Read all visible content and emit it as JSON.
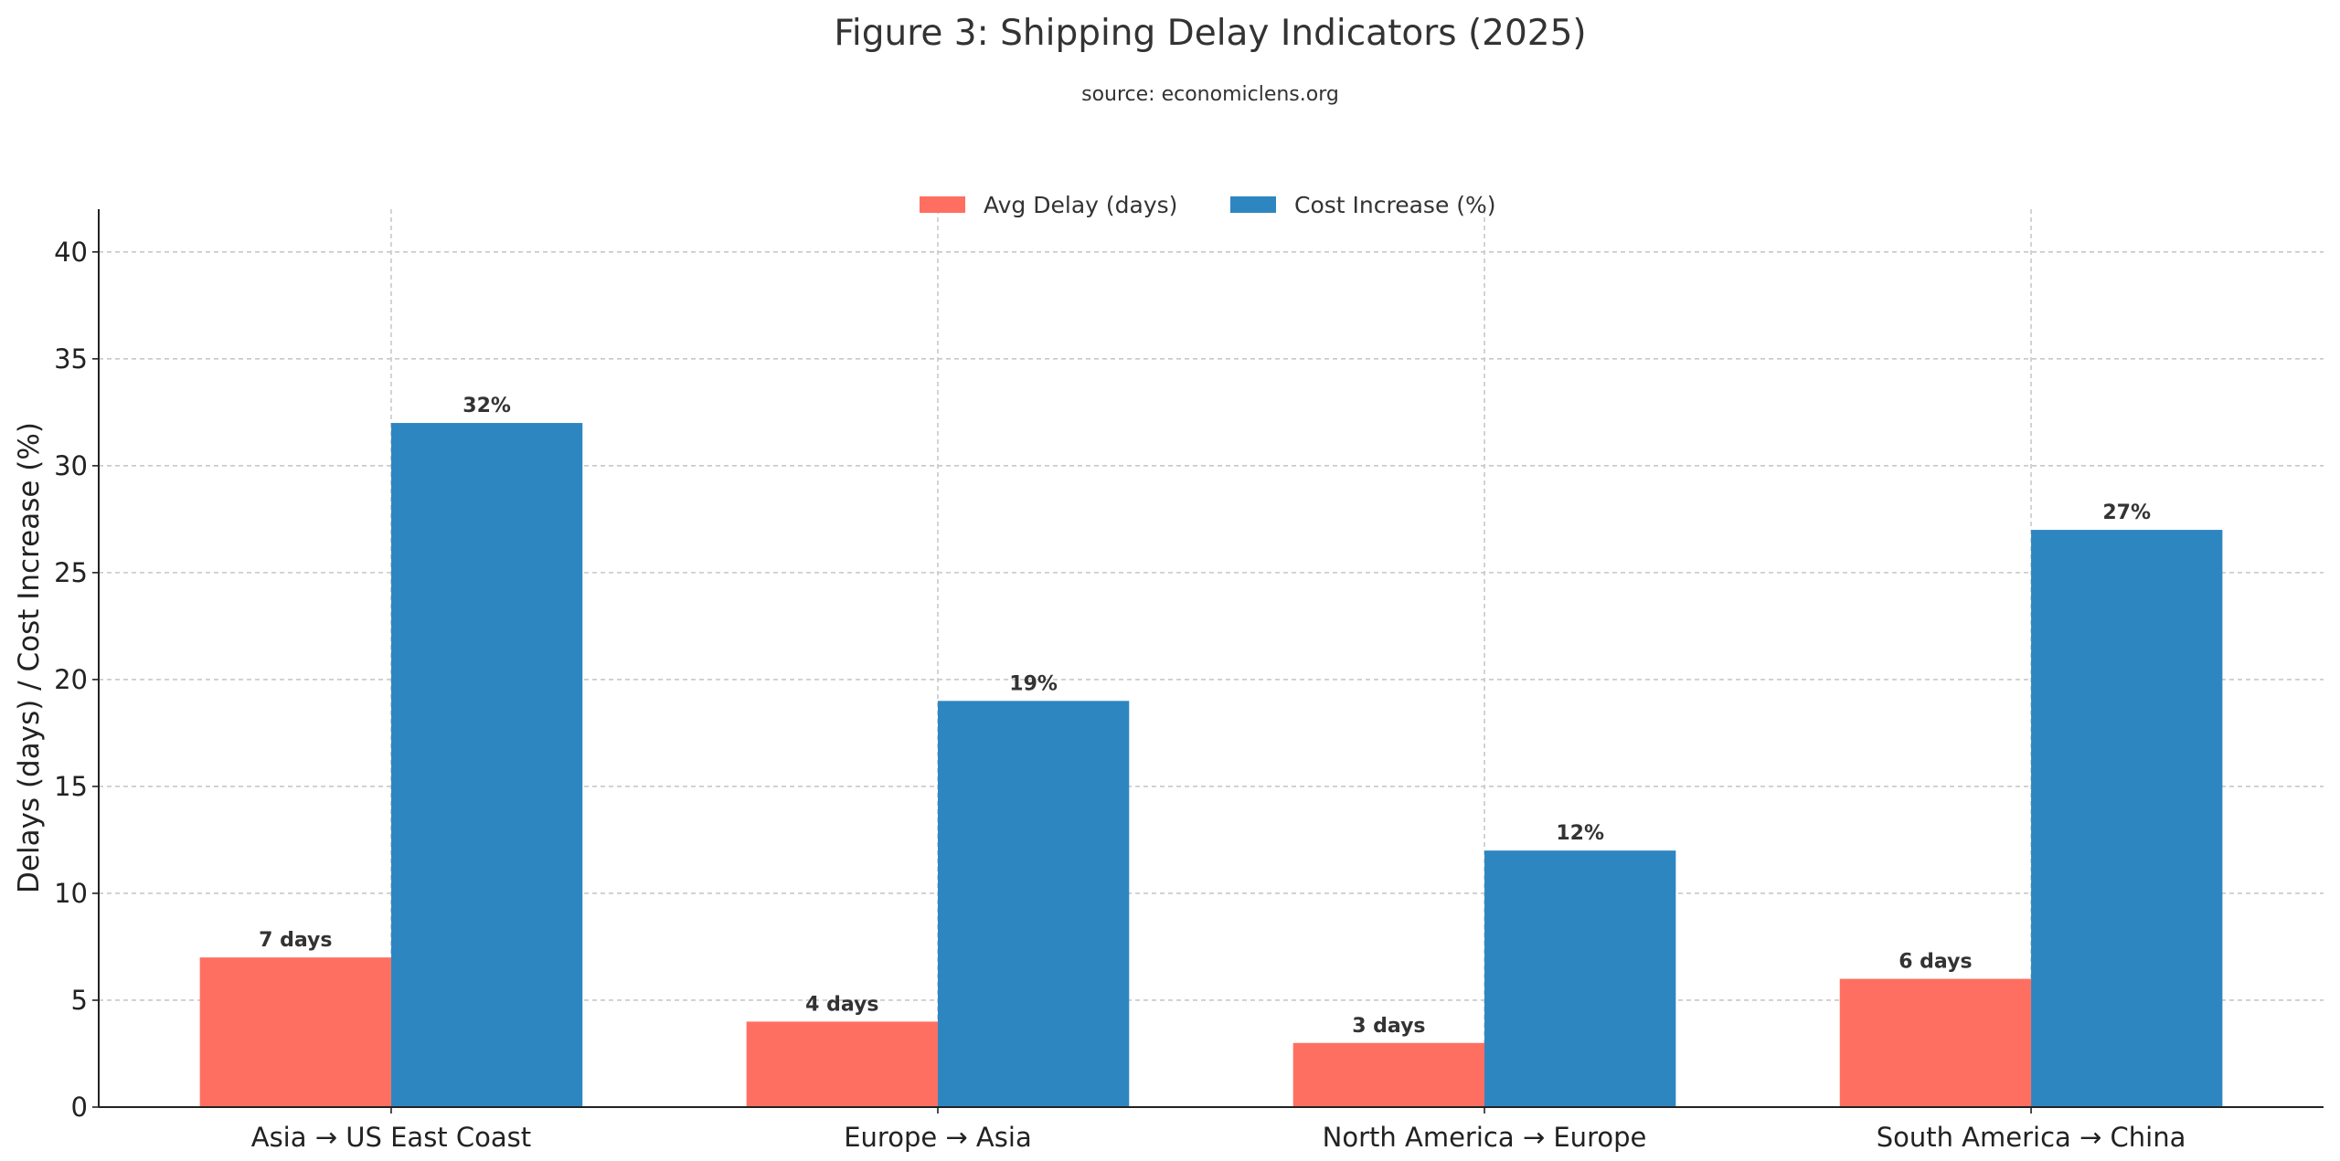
{
  "chart_data": {
    "type": "bar",
    "title": "Figure 3: Shipping Delay Indicators (2025)",
    "subtitle": "source: economiclens.org",
    "xlabel": "",
    "ylabel": "Delays (days) / Cost Increase (%)",
    "ylim": [
      0,
      42
    ],
    "yticks": [
      0,
      5,
      10,
      15,
      20,
      25,
      30,
      35,
      40
    ],
    "grid": true,
    "legend_position": "top-center",
    "categories": [
      "Asia → US East Coast",
      "Europe → Asia",
      "North America → Europe",
      "South America → China"
    ],
    "series": [
      {
        "name": "Avg Delay (days)",
        "color": "#FF6F61",
        "values": [
          7,
          4,
          3,
          6
        ],
        "labels": [
          "7 days",
          "4 days",
          "3 days",
          "6 days"
        ]
      },
      {
        "name": "Cost Increase (%)",
        "color": "#2E86C1",
        "values": [
          32,
          19,
          12,
          27
        ],
        "labels": [
          "32%",
          "19%",
          "12%",
          "27%"
        ]
      }
    ]
  }
}
